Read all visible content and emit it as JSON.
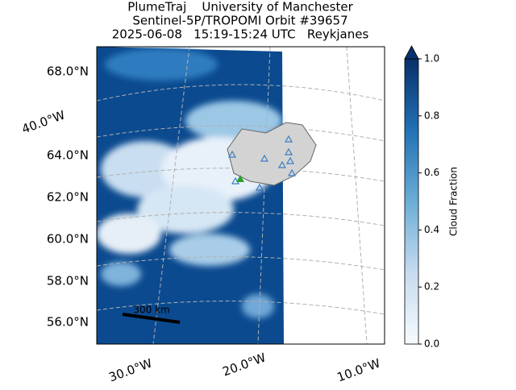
{
  "title": [
    "PlumeTraj    University of Manchester",
    "Sentinel-5P/TROPOMI Orbit #39657",
    "2025-06-08   15:19-15:24 UTC   Reykjanes"
  ],
  "lat_labels": [
    "68.0°N",
    "64.0°N",
    "62.0°N",
    "60.0°N",
    "58.0°N",
    "56.0°N"
  ],
  "lon_labels": [
    "40.0°W",
    "30.0°W",
    "20.0°W",
    "10.0°W"
  ],
  "scale_bar": "300 km",
  "colorbar": {
    "label": "Cloud Fraction",
    "lim": [
      0,
      1
    ],
    "ticks": [
      {
        "value": 0,
        "label": "0.0"
      },
      {
        "value": 0.2,
        "label": "0.2"
      },
      {
        "value": 0.4,
        "label": "0.4"
      },
      {
        "value": 0.6,
        "label": "0.6"
      },
      {
        "value": 0.8,
        "label": "0.8"
      },
      {
        "value": 1,
        "label": "1.0"
      }
    ]
  }
}
